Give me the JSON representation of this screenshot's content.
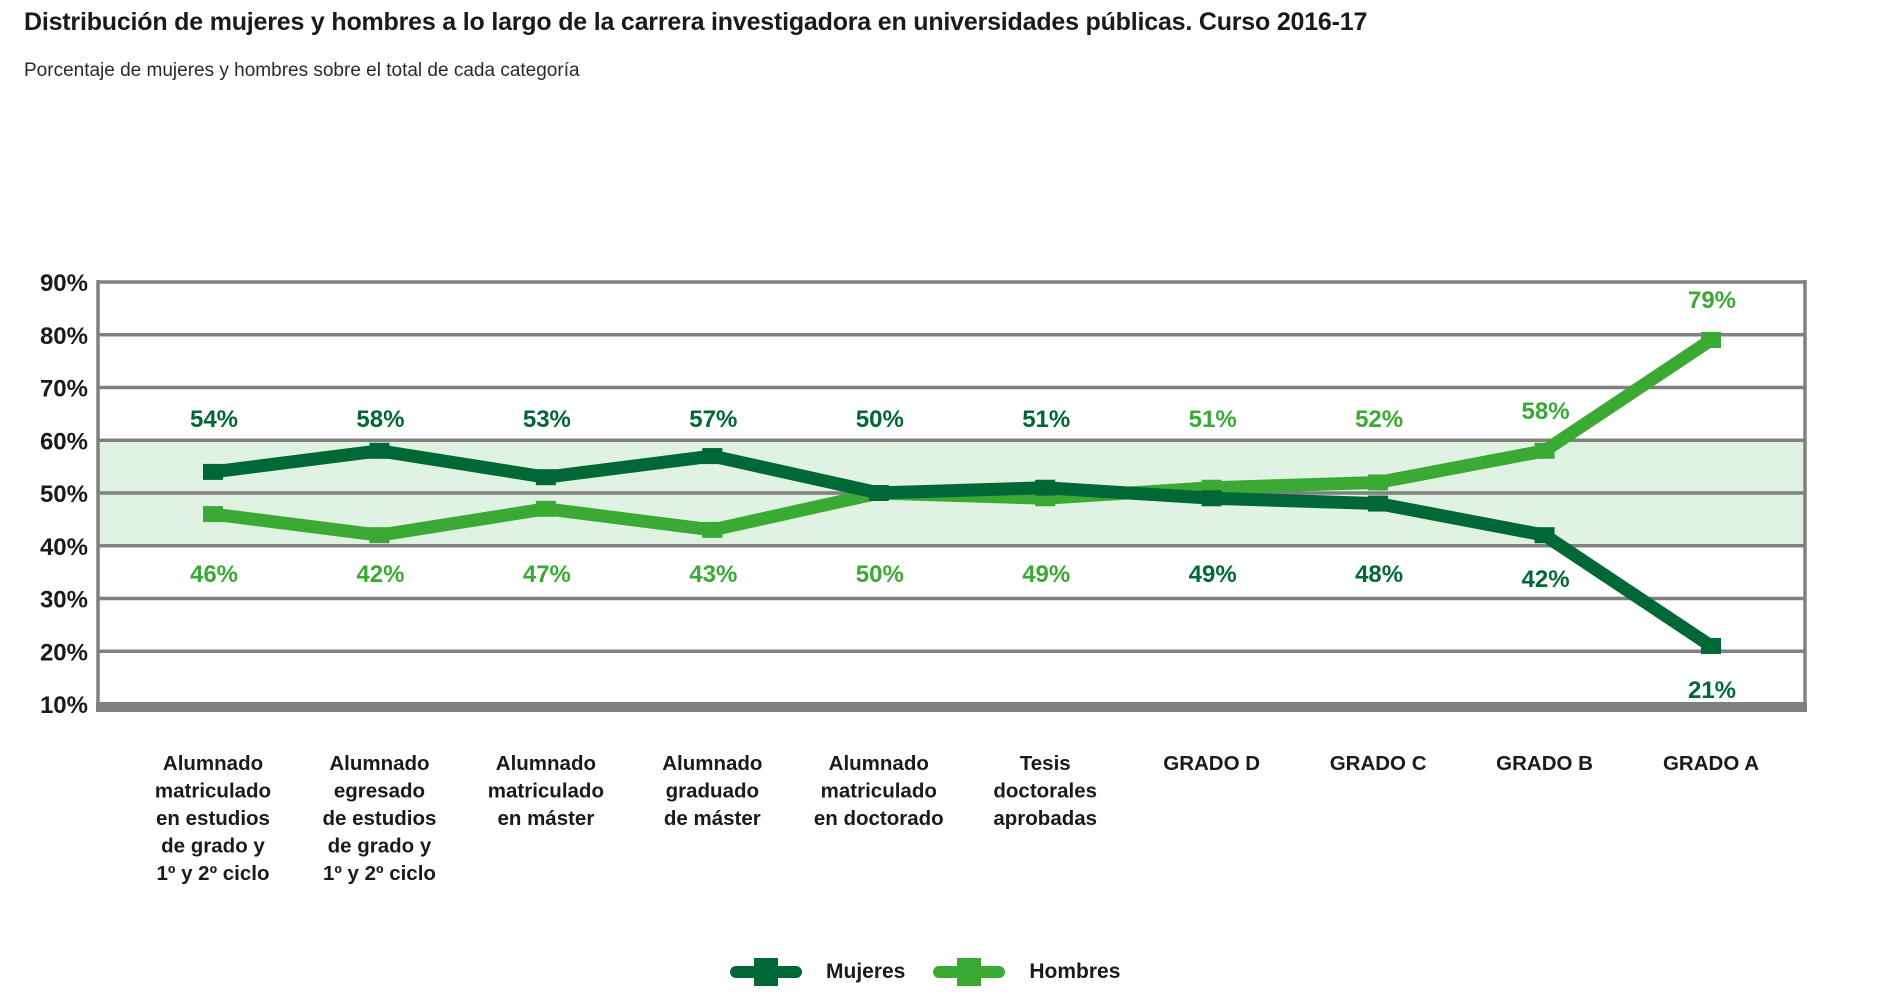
{
  "header": {
    "title": "Distribución de mujeres y hombres a lo largo de la carrera investigadora en universidades públicas. Curso 2016-17",
    "subtitle": "Porcentaje de mujeres y hombres sobre el total de cada categoría"
  },
  "colors": {
    "mujeres": "#006837",
    "hombres": "#3aaa35",
    "band": "#e0f2e2",
    "grid": "#808080"
  },
  "legend": [
    {
      "label": "Mujeres",
      "series": "mujeres"
    },
    {
      "label": "Hombres",
      "series": "hombres"
    }
  ],
  "chart_data": {
    "type": "line",
    "title": "Distribución de mujeres y hombres a lo largo de la carrera investigadora en universidades públicas. Curso 2016-17",
    "subtitle": "Porcentaje de mujeres y hombres sobre el total de cada categoría",
    "xlabel": "",
    "ylabel": "",
    "ylim": [
      10,
      90
    ],
    "yticks": [
      90,
      80,
      70,
      60,
      50,
      40,
      30,
      20,
      10
    ],
    "ytick_labels": [
      "90%",
      "80%",
      "70%",
      "60%",
      "50%",
      "40%",
      "30%",
      "20%",
      "10%"
    ],
    "grid": true,
    "highlight_band": [
      40,
      60
    ],
    "legend_position": "bottom-center",
    "categories": [
      [
        "Alumnado",
        "matriculado",
        "en estudios",
        "de grado y",
        "1º y 2º ciclo"
      ],
      [
        "Alumnado",
        "egresado",
        "de estudios",
        "de grado y",
        "1º y 2º ciclo"
      ],
      [
        "Alumnado",
        "matriculado",
        "en máster"
      ],
      [
        "Alumnado",
        "graduado",
        "de máster"
      ],
      [
        "Alumnado",
        "matriculado",
        "en doctorado"
      ],
      [
        "Tesis",
        "doctorales",
        "aprobadas"
      ],
      [
        "GRADO D"
      ],
      [
        "GRADO C"
      ],
      [
        "GRADO B"
      ],
      [
        "GRADO A"
      ]
    ],
    "series": [
      {
        "name": "Mujeres",
        "key": "mujeres",
        "values": [
          54,
          58,
          53,
          57,
          50,
          51,
          49,
          48,
          42,
          21
        ],
        "labels": [
          "54%",
          "58%",
          "53%",
          "57%",
          "50%",
          "51%",
          "49%",
          "48%",
          "42%",
          "21%"
        ]
      },
      {
        "name": "Hombres",
        "key": "hombres",
        "values": [
          46,
          42,
          47,
          43,
          50,
          49,
          51,
          52,
          58,
          79
        ],
        "labels": [
          "46%",
          "42%",
          "47%",
          "43%",
          "50%",
          "49%",
          "51%",
          "52%",
          "58%",
          "79%"
        ]
      }
    ]
  }
}
